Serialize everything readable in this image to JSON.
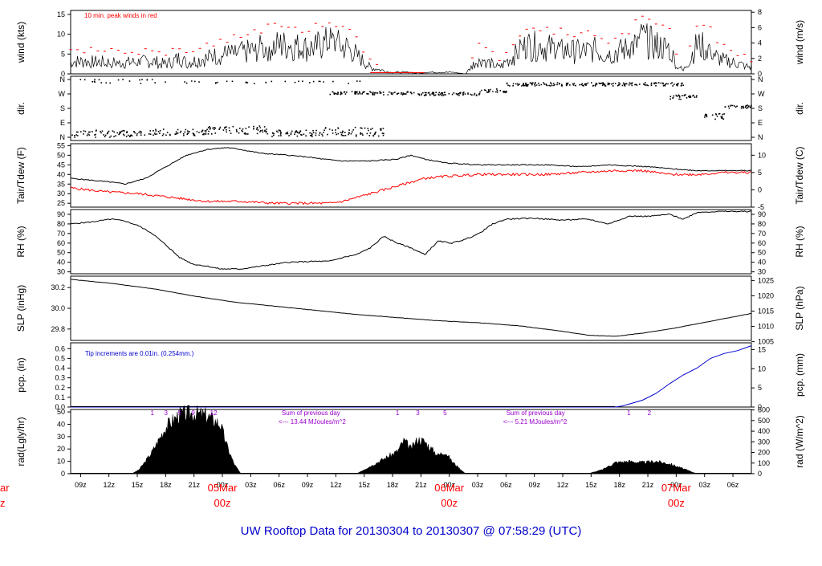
{
  "footer_title": "UW Rooftop Data for 20130304  to  20130307 @ 07:58:29  (UTC)",
  "colors": {
    "trace": "#000000",
    "red": "#ff0000",
    "blue": "#0000cc",
    "purple": "#9900cc"
  },
  "time_axis": {
    "tick_labels": [
      "09z",
      "12z",
      "15z",
      "18z",
      "21z",
      "00z",
      "03z",
      "06z",
      "09z",
      "12z",
      "15z",
      "18z",
      "21z",
      "00z",
      "03z",
      "06z",
      "09z",
      "12z",
      "15z",
      "18z",
      "21z",
      "00z",
      "03z",
      "06z"
    ],
    "day_labels": [
      {
        "date": "05Mar",
        "hour": "00z"
      },
      {
        "date": "06Mar",
        "hour": "00z"
      },
      {
        "date": "07Mar",
        "hour": "00z"
      }
    ],
    "cut_day_label": {
      "date": "ar",
      "hour": "z"
    }
  },
  "chart_data": [
    {
      "type": "line",
      "id": "wind",
      "ylabel_left": "wind (kts)",
      "ylabel_right": "wind (m/s)",
      "ylim": [
        0,
        16
      ],
      "left_ticks": [
        0,
        5,
        10,
        15
      ],
      "right_ticks": [
        0,
        2,
        4,
        6,
        8
      ],
      "annotation": "10 min. peak winds in red",
      "series": [
        {
          "name": "10 min. peak winds",
          "color": "red"
        }
      ],
      "profile_x": [
        0,
        8,
        12,
        14,
        16,
        17,
        22,
        25,
        28,
        30,
        32,
        35,
        38,
        41,
        44,
        47,
        50,
        51,
        52,
        56,
        58,
        60,
        63,
        67,
        71,
        74,
        77,
        79,
        82,
        84,
        86,
        88,
        89,
        90,
        92,
        94,
        95,
        100
      ],
      "profile_y": [
        4,
        3.5,
        4,
        3,
        5,
        3.5,
        6,
        6.5,
        8,
        9,
        9,
        8,
        10,
        8,
        2,
        0.5,
        0.5,
        0,
        0.5,
        0.5,
        0,
        5,
        2,
        9,
        8,
        7,
        7.5,
        6,
        8,
        11,
        9,
        8,
        3,
        1,
        9,
        8,
        5,
        2
      ]
    },
    {
      "type": "scatter",
      "id": "dir",
      "ylabel_left": "dir.",
      "ylabel_right": "dir.",
      "left_ticks": [
        "N",
        "W",
        "S",
        "E",
        "N"
      ],
      "right_ticks": [
        "N",
        "W",
        "S",
        "E",
        "N"
      ]
    },
    {
      "type": "line",
      "id": "temp",
      "ylabel_left": "Tair/Tdew (F)",
      "ylabel_right": "Tair/Tdew (C)",
      "ylim": [
        23,
        56
      ],
      "left_ticks": [
        25,
        30,
        35,
        40,
        45,
        50,
        55
      ],
      "right_ticks": [
        -5,
        0,
        5,
        10
      ],
      "series": [
        {
          "name": "Tair",
          "color": "black",
          "x": [
            0,
            3,
            6,
            8,
            11,
            14,
            17,
            20,
            23,
            25,
            28,
            32,
            35,
            37,
            40,
            44,
            48,
            50,
            52,
            55,
            60,
            66,
            70,
            75,
            79,
            85,
            88,
            92,
            100
          ],
          "y": [
            38,
            37,
            36,
            35,
            38,
            44,
            50,
            53,
            54,
            53,
            51,
            50,
            49,
            48,
            47,
            47,
            48,
            50,
            48,
            46,
            45,
            45,
            45,
            44,
            45,
            44,
            43,
            42,
            42
          ]
        },
        {
          "name": "Tdew",
          "color": "red",
          "x": [
            0,
            5,
            10,
            15,
            20,
            25,
            30,
            35,
            38,
            40,
            42,
            44,
            46,
            48,
            50,
            52,
            55,
            60,
            66,
            70,
            75,
            80,
            84,
            86,
            88,
            92,
            96,
            100
          ],
          "y": [
            33,
            31,
            30,
            28,
            26,
            26,
            25,
            25,
            25,
            26,
            28,
            30,
            32,
            34,
            36,
            38,
            39,
            40,
            40,
            40,
            41,
            42,
            42,
            41,
            40,
            40,
            41,
            41
          ]
        }
      ]
    },
    {
      "type": "line",
      "id": "rh",
      "ylabel_left": "RH (%)",
      "ylabel_right": "RH (%)",
      "ylim": [
        28,
        95
      ],
      "left_ticks": [
        30,
        40,
        50,
        60,
        70,
        80,
        90
      ],
      "right_ticks": [
        30,
        40,
        50,
        60,
        70,
        80,
        90
      ],
      "x": [
        0,
        3,
        6,
        8,
        10,
        12,
        14,
        16,
        18,
        20,
        22,
        25,
        28,
        32,
        36,
        38,
        40,
        42,
        44,
        46,
        48,
        50,
        52,
        54,
        56,
        58,
        60,
        62,
        64,
        68,
        72,
        76,
        79,
        82,
        85,
        88,
        90,
        92,
        95,
        100
      ],
      "y": [
        80,
        82,
        85,
        83,
        78,
        70,
        58,
        45,
        38,
        36,
        33,
        33,
        36,
        40,
        41,
        41,
        45,
        48,
        55,
        67,
        60,
        55,
        48,
        62,
        60,
        64,
        70,
        80,
        85,
        86,
        84,
        85,
        80,
        88,
        88,
        90,
        85,
        92,
        93,
        93
      ]
    },
    {
      "type": "line",
      "id": "slp",
      "ylabel_left": "SLP (inHg)",
      "ylabel_right": "SLP (hPa)",
      "ylim": [
        29.69,
        30.31
      ],
      "left_ticks": [
        29.8,
        30.0,
        30.2
      ],
      "right_ticks": [
        1005,
        1010,
        1015,
        1020,
        1025
      ],
      "x": [
        0,
        6,
        12,
        18,
        24,
        30,
        36,
        42,
        48,
        54,
        60,
        66,
        72,
        76,
        80,
        84,
        88,
        92,
        96,
        100
      ],
      "y": [
        30.28,
        30.24,
        30.19,
        30.12,
        30.06,
        30.02,
        29.98,
        29.94,
        29.91,
        29.88,
        29.86,
        29.83,
        29.78,
        29.74,
        29.73,
        29.76,
        29.8,
        29.85,
        29.9,
        29.95
      ]
    },
    {
      "type": "line",
      "id": "pcp",
      "ylabel_left": "pcp. (in)",
      "ylabel_right": "pcp. (mm)",
      "ylim": [
        0,
        0.66
      ],
      "left_ticks": [
        0.0,
        0.1,
        0.2,
        0.3,
        0.4,
        0.5,
        0.6
      ],
      "right_ticks": [
        0,
        5,
        10,
        15
      ],
      "annotation": "Tip increments are 0.01in. (0.254mm.)",
      "series": [
        {
          "name": "pcp",
          "color": "blue",
          "x": [
            0,
            80,
            81,
            82,
            84,
            86,
            88,
            90,
            92,
            94,
            96,
            98,
            100
          ],
          "y": [
            0,
            0,
            0.01,
            0.03,
            0.07,
            0.14,
            0.24,
            0.33,
            0.4,
            0.5,
            0.55,
            0.58,
            0.63
          ]
        }
      ]
    },
    {
      "type": "area",
      "id": "rad",
      "ylabel_left": "rad(Lgly/hr)",
      "ylabel_right": "rad (W/m^2)",
      "ylim": [
        0,
        52
      ],
      "left_ticks": [
        0,
        10,
        20,
        30,
        40,
        50
      ],
      "right_ticks": [
        0,
        100,
        200,
        300,
        400,
        500,
        600
      ],
      "annotations": [
        {
          "text": "Sum of previous day",
          "x": 31,
          "row": 1
        },
        {
          "text": "<--- 13.44 MJoules/m^2",
          "x": 31,
          "row": 2
        },
        {
          "text": "Sum of previous day",
          "x": 64,
          "row": 1
        },
        {
          "text": "<--- 5.21 MJoules/m^2",
          "x": 64,
          "row": 2
        }
      ],
      "markers": [
        {
          "text": "1",
          "x": 12
        },
        {
          "text": "3",
          "x": 14
        },
        {
          "text": "5",
          "x": 16
        },
        {
          "text": "9",
          "x": 18
        },
        {
          "text": "12",
          "x": 21
        },
        {
          "text": "1",
          "x": 48
        },
        {
          "text": "3",
          "x": 51
        },
        {
          "text": "5",
          "x": 55
        },
        {
          "text": "1",
          "x": 82
        },
        {
          "text": "2",
          "x": 85
        }
      ],
      "series": [
        {
          "x": [
            9,
            10,
            11,
            12,
            14,
            16,
            18,
            20,
            22,
            23,
            24,
            25
          ],
          "y": [
            0,
            3,
            10,
            18,
            38,
            48,
            49,
            47,
            40,
            22,
            8,
            0
          ]
        },
        {
          "x": [
            42,
            43,
            44,
            46,
            48,
            49,
            50,
            51,
            52,
            53,
            54,
            55,
            56,
            57,
            58
          ],
          "y": [
            0,
            3,
            6,
            12,
            18,
            27,
            20,
            28,
            26,
            20,
            15,
            18,
            10,
            5,
            0
          ]
        },
        {
          "x": [
            76,
            78,
            79,
            80,
            82,
            84,
            86,
            88,
            90,
            91,
            92
          ],
          "y": [
            0,
            3,
            6,
            9,
            10,
            9,
            10,
            8,
            4,
            2,
            0
          ]
        }
      ]
    }
  ]
}
